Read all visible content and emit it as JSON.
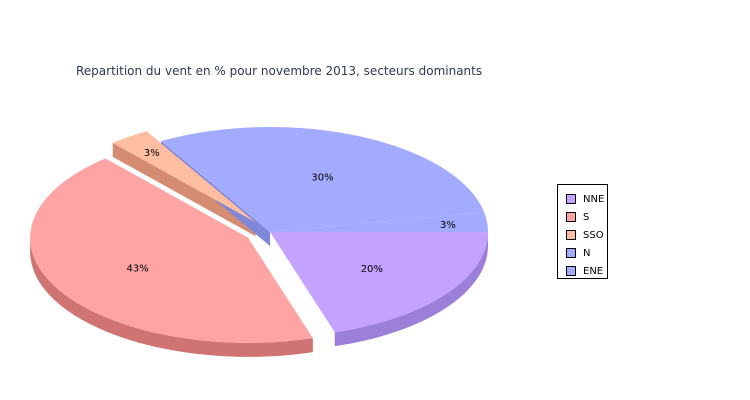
{
  "chart_data": {
    "type": "pie",
    "title": "Repartition du vent en % pour novembre 2013, secteurs dominants",
    "slices": [
      {
        "name": "NNE",
        "value": 20,
        "label": "20%",
        "color": "#c4a2ff",
        "side": "#9c7fd9"
      },
      {
        "name": "S",
        "value": 43,
        "label": "43%",
        "color": "#ffa4a4",
        "side": "#d07373",
        "exploded": true
      },
      {
        "name": "SSO",
        "value": 3,
        "label": "3%",
        "color": "#ffbda1",
        "side": "#d48c73",
        "exploded": true
      },
      {
        "name": "N",
        "value": 30,
        "label": "30%",
        "color": "#a3abff",
        "side": "#7f87d9"
      },
      {
        "name": "ENE",
        "value": 3,
        "label": "3%",
        "color": "#a3abff",
        "side": "#7f87d9"
      }
    ],
    "legend": {
      "position": "right"
    }
  }
}
